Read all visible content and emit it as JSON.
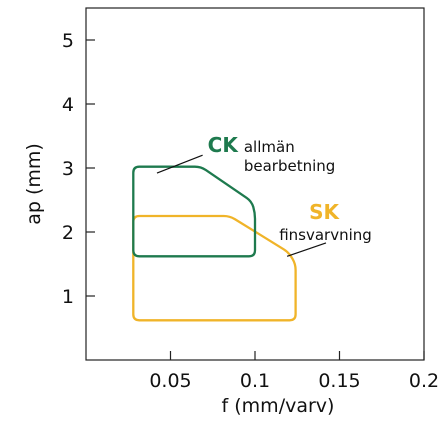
{
  "chart_data": {
    "type": "area",
    "xlabel": "f (mm/varv)",
    "ylabel": "ap (mm)",
    "xlim": [
      0,
      0.2
    ],
    "ylim": [
      0,
      5.5
    ],
    "x_ticks": [
      {
        "value": 0.05,
        "label": "0.05"
      },
      {
        "value": 0.1,
        "label": "0.1"
      },
      {
        "value": 0.15,
        "label": "0.15"
      },
      {
        "value": 0.2,
        "label": "0.2"
      }
    ],
    "y_ticks": [
      {
        "value": 1,
        "label": "1"
      },
      {
        "value": 2,
        "label": "2"
      },
      {
        "value": 3,
        "label": "3"
      },
      {
        "value": 4,
        "label": "4"
      },
      {
        "value": 5,
        "label": "5"
      }
    ],
    "grid": false,
    "regions": [
      {
        "name": "CK",
        "description": [
          "allmän",
          "bearbetning"
        ],
        "color": "#1e7a4e",
        "outline": [
          [
            0.028,
            1.62
          ],
          [
            0.028,
            3.02
          ],
          [
            0.068,
            3.02
          ],
          [
            0.098,
            2.48
          ],
          [
            0.1,
            2.3
          ],
          [
            0.1,
            1.62
          ]
        ],
        "label_anchor": [
          0.072,
          3.0
        ],
        "leader": [
          [
            0.042,
            2.92
          ],
          [
            0.069,
            3.2
          ]
        ]
      },
      {
        "name": "SK",
        "description": [
          "finsvarvning"
        ],
        "color": "#f0b429",
        "outline": [
          [
            0.028,
            0.62
          ],
          [
            0.028,
            2.25
          ],
          [
            0.085,
            2.25
          ],
          [
            0.12,
            1.68
          ],
          [
            0.124,
            1.5
          ],
          [
            0.124,
            0.62
          ]
        ],
        "label_anchor": [
          0.132,
          1.95
        ],
        "leader": [
          [
            0.119,
            1.62
          ],
          [
            0.142,
            1.83
          ]
        ]
      }
    ]
  }
}
